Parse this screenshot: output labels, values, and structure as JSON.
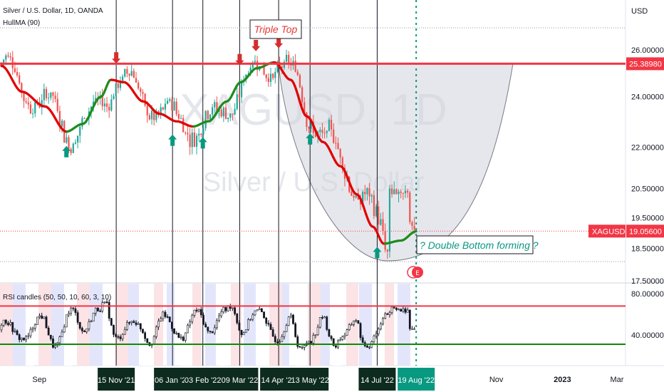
{
  "header": {
    "symbol_line": "Silver / U.S. Dollar, 1D, OANDA",
    "indicator": "HullMA (90)"
  },
  "watermark": {
    "main": "XAGUSD, 1D",
    "sub": "Silver / U.S. Dollar"
  },
  "price_axis": {
    "unit": "USD"
  },
  "rsi_panel": {
    "label": "RSI candles (50, 50, 10, 60, 3, 10)"
  },
  "annotations": {
    "triple_top": "Triple Top",
    "double_bottom": "? Double Bottom forming ?"
  },
  "colors": {
    "bull": "#26a69a",
    "bear": "#ef5350",
    "resistance": "#f23645",
    "support": "#138808",
    "hull_up": "#1e8c1e",
    "hull_down": "#e00000",
    "arrow_up": "#089981",
    "arrow_down": "#d32f2f",
    "cup_fill": "#d1d4dc",
    "dark_label": "#0d2b1e"
  },
  "chart_data": [
    {
      "type": "candlestick",
      "title": "Silver / U.S. Dollar, 1D, OANDA",
      "ylabel": "USD",
      "ylim": [
        17.2,
        27.2
      ],
      "y_ticks": [
        "26.00000",
        "24.00000",
        "22.00000",
        "20.50000",
        "19.50000",
        "18.50000",
        "17.50000"
      ],
      "x_ticks": [
        "Sep",
        "Nov",
        "2023",
        "Mar"
      ],
      "resistance_level": 25.3898,
      "resistance_label": "25.38980",
      "last_price": 19.056,
      "last_price_label": "19.05600",
      "last_symbol": "XAGUSD",
      "hull_ma": {
        "name": "HullMA (90)",
        "points": [
          [
            "2021-08-01",
            25.3
          ],
          [
            "2021-08-20",
            24.2
          ],
          [
            "2021-09-10",
            23.6
          ],
          [
            "2021-09-30",
            22.6
          ],
          [
            "2021-10-15",
            22.9
          ],
          [
            "2021-11-01",
            24.0
          ],
          [
            "2021-11-10",
            24.7
          ],
          [
            "2021-11-22",
            24.6
          ],
          [
            "2021-12-10",
            23.8
          ],
          [
            "2021-12-25",
            23.3
          ],
          [
            "2022-01-10",
            23.0
          ],
          [
            "2022-01-25",
            22.8
          ],
          [
            "2022-02-08",
            23.0
          ],
          [
            "2022-02-25",
            23.8
          ],
          [
            "2022-03-10",
            24.6
          ],
          [
            "2022-03-25",
            25.2
          ],
          [
            "2022-04-10",
            25.45
          ],
          [
            "2022-04-25",
            24.7
          ],
          [
            "2022-05-10",
            23.2
          ],
          [
            "2022-05-25",
            22.2
          ],
          [
            "2022-06-10",
            21.3
          ],
          [
            "2022-06-25",
            20.3
          ],
          [
            "2022-07-10",
            19.2
          ],
          [
            "2022-07-20",
            18.65
          ],
          [
            "2022-08-05",
            18.75
          ],
          [
            "2022-08-19",
            19.05
          ]
        ]
      }
    },
    {
      "type": "candlestick",
      "title": "RSI candles (50, 50, 10, 60, 3, 10)",
      "y_ticks": [
        "80.00000",
        "40.00000"
      ],
      "upper_level": 68,
      "lower_level": 31
    }
  ],
  "time_markers": [
    {
      "date": "2021-11-15",
      "label": "15 Nov '21"
    },
    {
      "date": "2022-01-06",
      "label": "06 Jan '22"
    },
    {
      "date": "2022-02-03",
      "label": "03 Feb '22"
    },
    {
      "date": "2022-03-09",
      "label": "09 Mar '22"
    },
    {
      "date": "2022-04-14",
      "label": "14 Apr '22"
    },
    {
      "date": "2022-05-13",
      "label": "13 May '22"
    },
    {
      "date": "2022-07-14",
      "label": "14 Jul '22"
    },
    {
      "date": "2022-08-19",
      "label": "19 Aug '22"
    }
  ],
  "signals": {
    "up_arrows": [
      "2021-09-30",
      "2022-01-06",
      "2022-02-03",
      "2022-05-13",
      "2022-07-14"
    ],
    "down_arrows": [
      "2021-11-15",
      "2022-03-09",
      "2022-03-24",
      "2022-04-14"
    ]
  }
}
